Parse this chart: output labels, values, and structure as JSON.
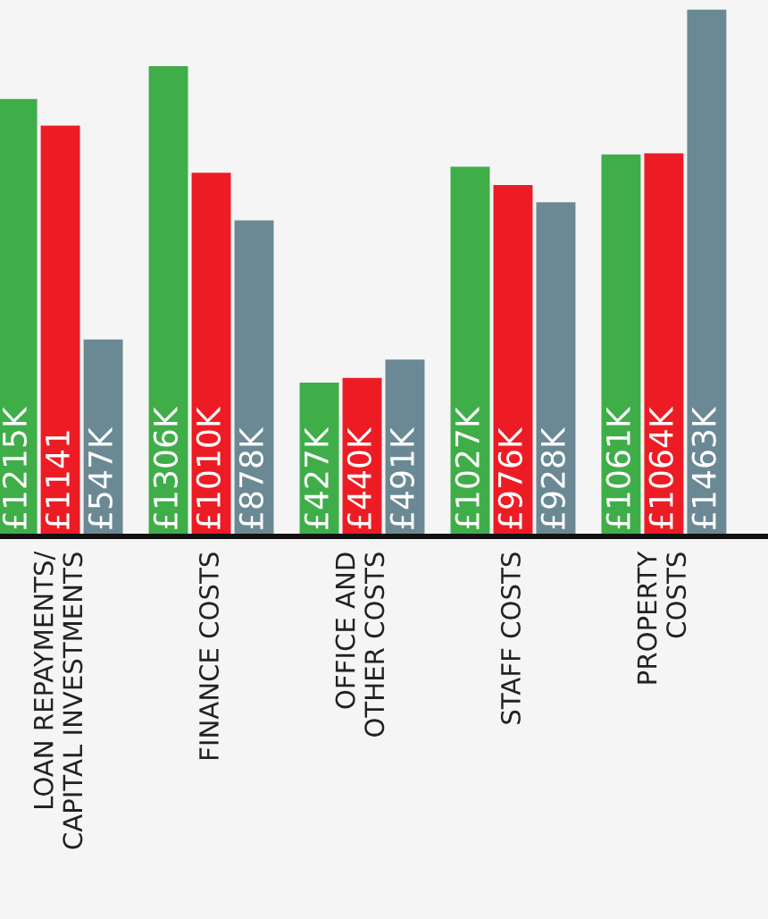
{
  "chart_data": {
    "type": "bar",
    "categories": [
      "LOAN REPAYMENTS/\nCAPITAL INVESTMENTS",
      "FINANCE COSTS",
      "OFFICE AND\nOTHER COSTS",
      "STAFF COSTS",
      "PROPERTY\nCOSTS"
    ],
    "series": [
      {
        "color": "#3fae49",
        "values": [
          1215,
          1306,
          427,
          1027,
          1061
        ],
        "value_labels": [
          "£1215K",
          "£1306K",
          "£427K",
          "£1027K",
          "£1061K"
        ]
      },
      {
        "color": "#ed1c24",
        "values": [
          1141,
          1010,
          440,
          976,
          1064
        ],
        "value_labels": [
          "£1141",
          "£1010K",
          "£440K",
          "£976K",
          "£1064K"
        ]
      },
      {
        "color": "#6a8994",
        "values": [
          547,
          878,
          491,
          928,
          1463
        ],
        "value_labels": [
          "£547K",
          "£878K",
          "£491K",
          "£928K",
          "£1463K"
        ]
      }
    ],
    "ylim": [
      0,
      1490
    ],
    "tick_labels": "x",
    "grid": false,
    "legend": false
  }
}
